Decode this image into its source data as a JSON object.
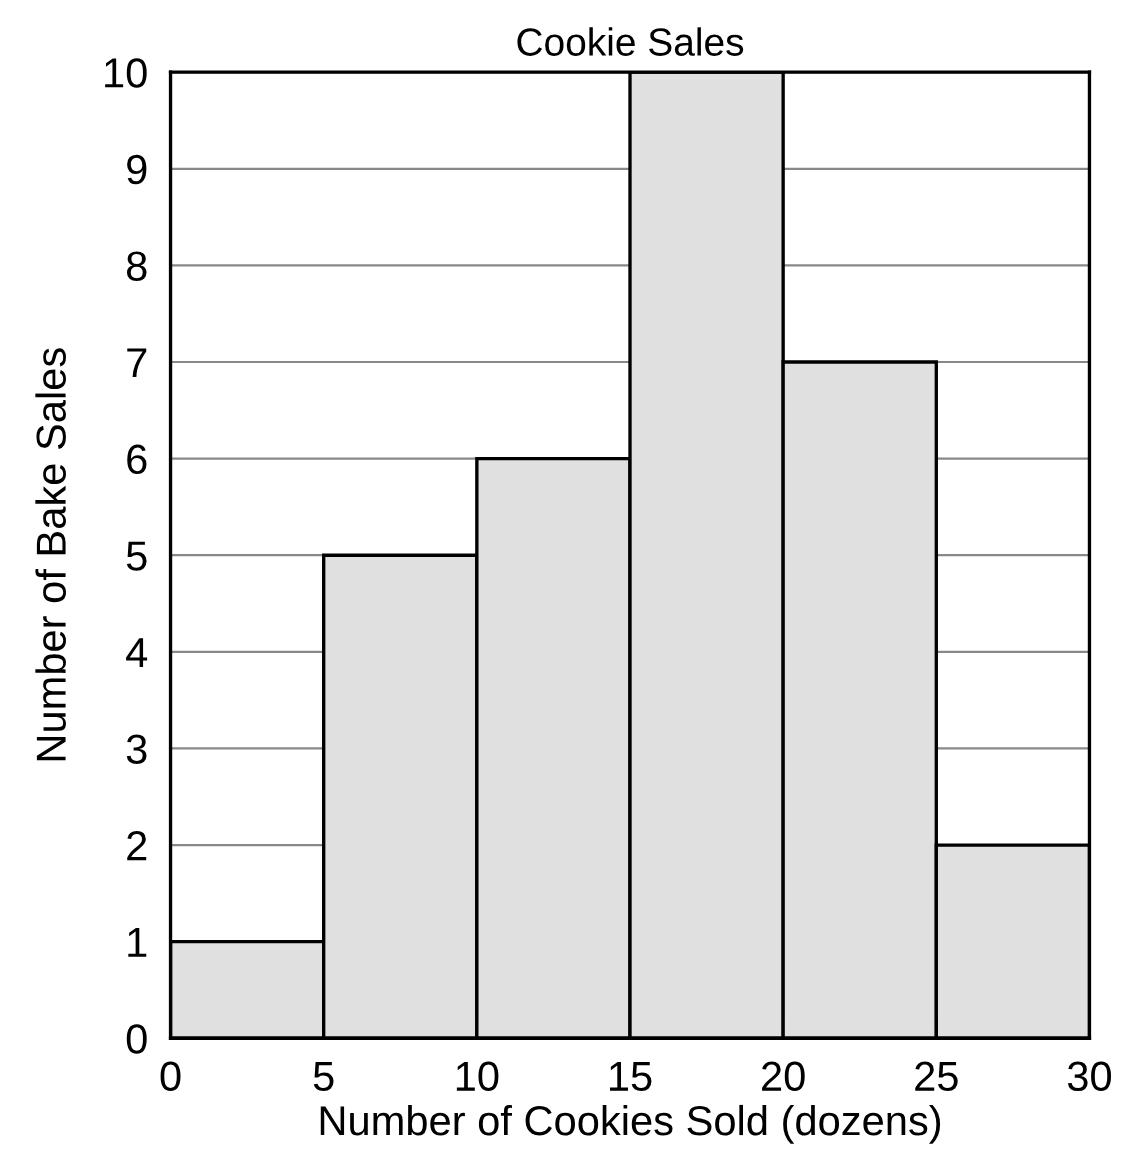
{
  "chart_data": {
    "type": "histogram",
    "title": "Cookie Sales",
    "xlabel": "Number of Cookies Sold (dozens)",
    "ylabel": "Number of Bake Sales",
    "bins": [
      0,
      5,
      10,
      15,
      20,
      25,
      30
    ],
    "values": [
      1,
      5,
      6,
      10,
      7,
      2
    ],
    "color": "#e0e0e0",
    "xlim": [
      0,
      30
    ],
    "ylim": [
      0,
      10
    ],
    "xticks": [
      0,
      5,
      10,
      15,
      20,
      25,
      30
    ],
    "yticks": [
      0,
      1,
      2,
      3,
      4,
      5,
      6,
      7,
      8,
      9,
      10
    ],
    "grid": "y"
  }
}
